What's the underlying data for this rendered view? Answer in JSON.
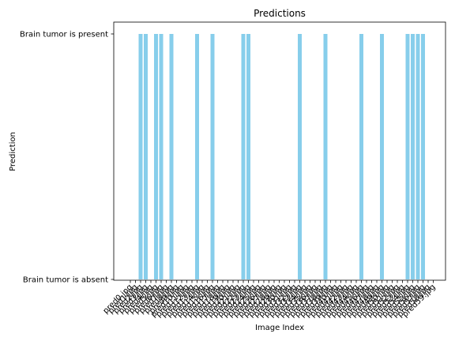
{
  "chart_data": {
    "type": "bar",
    "title": "Predictions",
    "xlabel": "Image Index",
    "ylabel": "Prediction",
    "yticks": [
      {
        "value": 0,
        "label": "Brain tumor is absent"
      },
      {
        "value": 1,
        "label": "Brain tumor is present"
      }
    ],
    "ylim": [
      0,
      1
    ],
    "bar_color": "#87CEEB",
    "categories": [
      "pred0.jpg",
      "pred1.jpg",
      "pred2.jpg",
      "pred3.jpg",
      "pred4.jpg",
      "pred5.jpg",
      "pred6.jpg",
      "pred7.jpg",
      "pred8.jpg",
      "pred9.jpg",
      "pred10.jpg",
      "pred11.jpg",
      "pred12.jpg",
      "pred13.jpg",
      "pred14.jpg",
      "pred15.jpg",
      "pred16.jpg",
      "pred17.jpg",
      "pred18.jpg",
      "pred19.jpg",
      "pred20.jpg",
      "pred21.jpg",
      "pred22.jpg",
      "pred23.jpg",
      "pred24.jpg",
      "pred25.jpg",
      "pred26.jpg",
      "pred27.jpg",
      "pred28.jpg",
      "pred29.jpg",
      "pred30.jpg",
      "pred31.jpg",
      "pred32.jpg",
      "pred33.jpg",
      "pred34.jpg",
      "pred35.jpg",
      "pred36.jpg",
      "pred37.jpg",
      "pred38.jpg",
      "pred39.jpg",
      "pred40.jpg",
      "pred41.jpg",
      "pred42.jpg",
      "pred43.jpg",
      "pred44.jpg",
      "pred45.jpg",
      "pred46.jpg",
      "pred47.jpg",
      "pred48.jpg",
      "pred49.jpg",
      "pred50.jpg",
      "pred51.jpg",
      "pred52.jpg",
      "pred53.jpg",
      "pred54.jpg",
      "pred55.jpg",
      "pred56.jpg",
      "pred57.jpg",
      "pred58.jpg",
      "pred59.jpg"
    ],
    "values": [
      0,
      0,
      1,
      1,
      0,
      1,
      1,
      0,
      1,
      0,
      0,
      0,
      0,
      1,
      0,
      0,
      1,
      0,
      0,
      0,
      0,
      0,
      1,
      1,
      0,
      0,
      0,
      0,
      0,
      0,
      0,
      0,
      0,
      1,
      0,
      0,
      0,
      0,
      1,
      0,
      0,
      0,
      0,
      0,
      0,
      1,
      0,
      0,
      0,
      1,
      0,
      0,
      0,
      0,
      1,
      1,
      1,
      1,
      0,
      0
    ]
  }
}
